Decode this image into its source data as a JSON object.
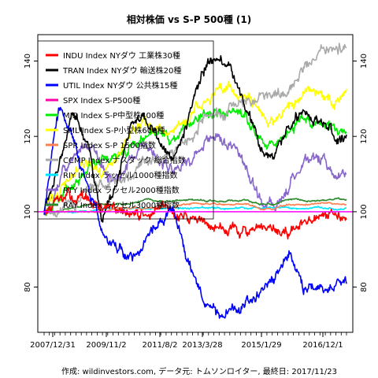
{
  "chart_data": {
    "type": "line",
    "title": "相対株価 vs S-P 500種 (1)",
    "xlabel": "",
    "ylabel": "",
    "x_tick_labels": [
      "2007/12/31",
      "2009/11/2",
      "2011/8/2",
      "2013/3/28",
      "2015/1/29",
      "2016/12/1"
    ],
    "y_ticks": [
      80,
      100,
      120,
      140
    ],
    "ylim": [
      68,
      147
    ],
    "grid": false,
    "reference_line": {
      "y": 100,
      "color": "#ff00ff"
    },
    "legend_position": "top-left",
    "series": [
      {
        "name": "INDU Index NYダウ 工業株30種",
        "color": "#ff0000",
        "samples": [
          100,
          102,
          104,
          103,
          101,
          100,
          99,
          99,
          100,
          100,
          99,
          97,
          96,
          96,
          95,
          94,
          94,
          95,
          96,
          97,
          98,
          100
        ]
      },
      {
        "name": "TRAN Index NYダウ 輸送株20種",
        "color": "#000000",
        "samples": [
          100,
          112,
          128,
          118,
          100,
          108,
          124,
          126,
          118,
          114,
          125,
          138,
          140,
          138,
          128,
          118,
          115,
          122,
          127,
          124,
          121,
          121
        ]
      },
      {
        "name": "UTIL Index NYダウ 公共株15種",
        "color": "#0000ff",
        "samples": [
          100,
          128,
          120,
          105,
          95,
          90,
          88,
          92,
          98,
          100,
          88,
          78,
          74,
          74,
          76,
          77,
          82,
          88,
          80,
          80,
          80,
          81
        ]
      },
      {
        "name": "SPX Index S-P500種",
        "color": "#ff00aa",
        "samples": [
          100,
          100,
          100,
          100,
          100,
          100,
          100,
          100,
          100,
          100,
          100,
          100,
          100,
          100,
          100,
          100,
          100,
          100,
          100,
          100,
          100,
          100
        ]
      },
      {
        "name": "MID Index S-P中型株400種",
        "color": "#00ee00",
        "samples": [
          100,
          104,
          108,
          112,
          114,
          115,
          118,
          121,
          120,
          119,
          122,
          125,
          126,
          126,
          124,
          120,
          118,
          121,
          124,
          124,
          122,
          122
        ]
      },
      {
        "name": "SML Index S-P小型株600種",
        "color": "#ffff00",
        "samples": [
          100,
          105,
          110,
          112,
          110,
          115,
          120,
          124,
          122,
          120,
          125,
          130,
          133,
          133,
          131,
          125,
          124,
          128,
          134,
          132,
          130,
          131
        ]
      },
      {
        "name": "SPR Index S-P 1500指数",
        "color": "#ff7f50",
        "samples": [
          100,
          100,
          100,
          100,
          100,
          101,
          101,
          101,
          101,
          101,
          102,
          102,
          102,
          102,
          102,
          101,
          101,
          102,
          102,
          102,
          102,
          102
        ]
      },
      {
        "name": "CCMP Index ナスダック 総合指数",
        "color": "#aaaaaa",
        "samples": [
          100,
          100,
          103,
          106,
          108,
          108,
          110,
          112,
          114,
          116,
          120,
          124,
          127,
          128,
          130,
          130,
          131,
          133,
          138,
          141,
          143,
          145
        ]
      },
      {
        "name": "RIY Index ラッセル1000種指数",
        "color": "#00e5ff",
        "samples": [
          100,
          100,
          100,
          100,
          101,
          101,
          101,
          101,
          101,
          101,
          101,
          101,
          101,
          101,
          101,
          101,
          101,
          101,
          101,
          101,
          101,
          101
        ]
      },
      {
        "name": "RTY Index ラッセル2000種指数",
        "color": "#8866cc",
        "samples": [
          100,
          108,
          115,
          118,
          112,
          110,
          114,
          118,
          114,
          110,
          115,
          118,
          120,
          118,
          112,
          104,
          102,
          108,
          113,
          114,
          110,
          110
        ]
      },
      {
        "name": "RAY Index ラッセル3000種指数",
        "color": "#2e8b2e",
        "samples": [
          100,
          100,
          101,
          102,
          102,
          102,
          102,
          103,
          103,
          103,
          103,
          103,
          103,
          103,
          103,
          102,
          102,
          103,
          103,
          103,
          103,
          103
        ]
      }
    ]
  },
  "footer": {
    "credit": "作成: wildinvestors.com, データ元: トムソンロイター, 最終日: 2017/11/23"
  }
}
